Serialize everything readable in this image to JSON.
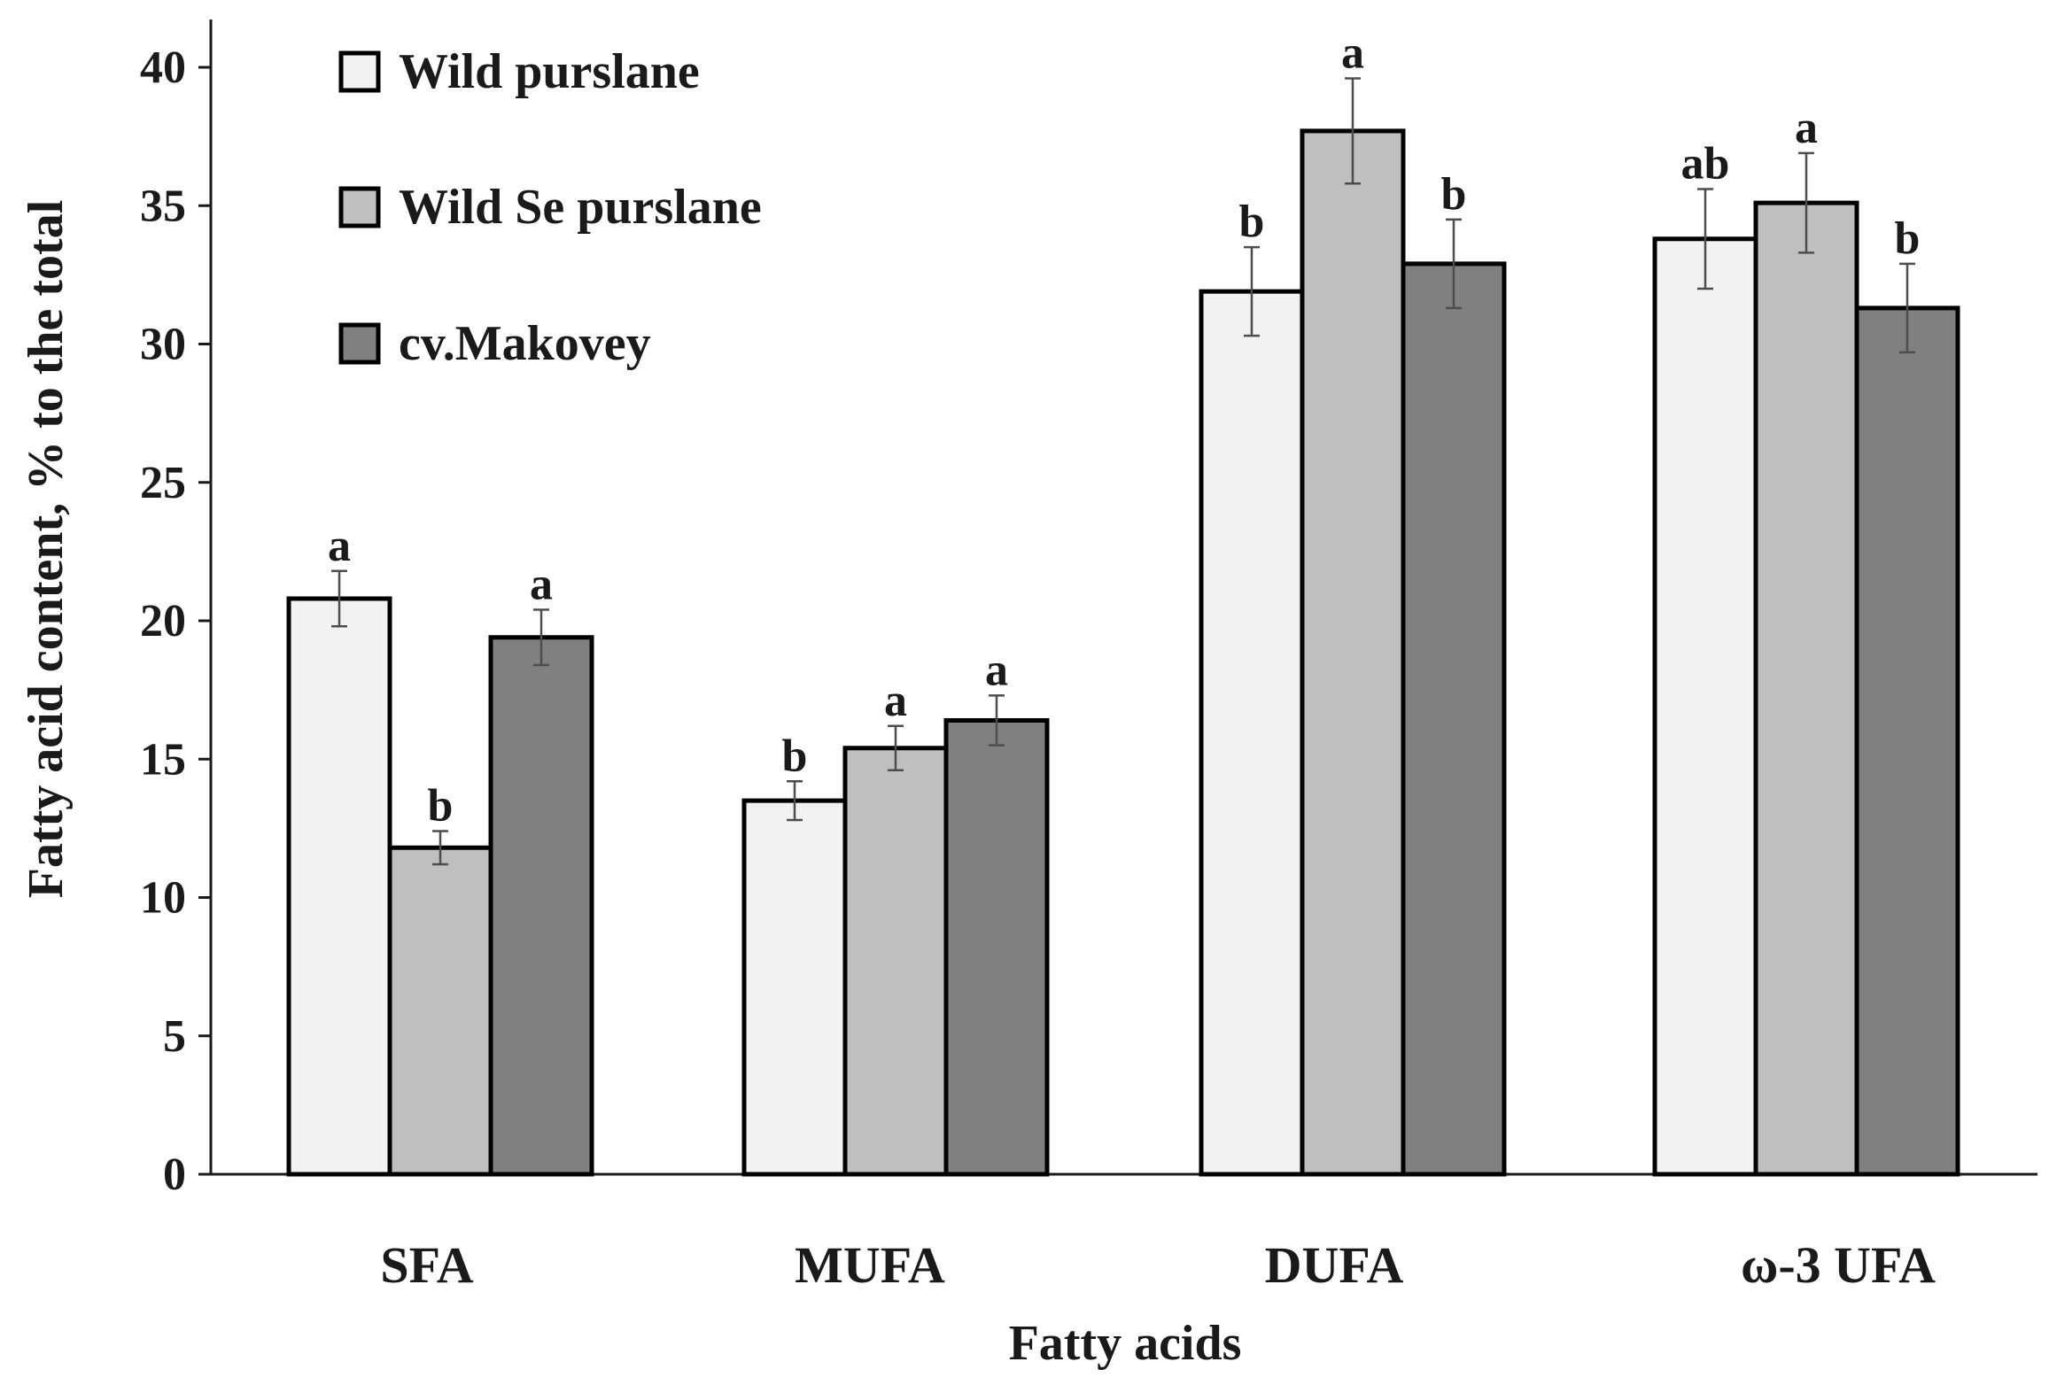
{
  "chart_data": {
    "type": "bar",
    "title": "",
    "xlabel": "Fatty acids",
    "ylabel": "Fatty acid content, % to the total",
    "ylim": [
      0,
      40
    ],
    "yticks": [
      0,
      5,
      10,
      15,
      20,
      25,
      30,
      35,
      40
    ],
    "categories": [
      "SFA",
      "MUFA",
      "DUFA",
      "ω-3 UFA"
    ],
    "series": [
      {
        "name": "Wild purslane",
        "color": "#f2f2f2",
        "values": [
          20.8,
          13.5,
          31.9,
          33.8
        ],
        "errors": [
          1.0,
          0.7,
          1.6,
          1.8
        ],
        "letters": [
          "a",
          "b",
          "b",
          "ab"
        ]
      },
      {
        "name": "Wild Se purslane",
        "color": "#bfbfbf",
        "values": [
          11.8,
          15.4,
          37.7,
          35.1
        ],
        "errors": [
          0.6,
          0.8,
          1.9,
          1.8
        ],
        "letters": [
          "b",
          "a",
          "a",
          "a"
        ]
      },
      {
        "name": "cv.Makovey",
        "color": "#808080",
        "values": [
          19.4,
          16.4,
          32.9,
          31.3
        ],
        "errors": [
          1.0,
          0.9,
          1.6,
          1.6
        ],
        "letters": [
          "a",
          "a",
          "b",
          "b"
        ]
      }
    ],
    "legend_position": "top-left"
  }
}
